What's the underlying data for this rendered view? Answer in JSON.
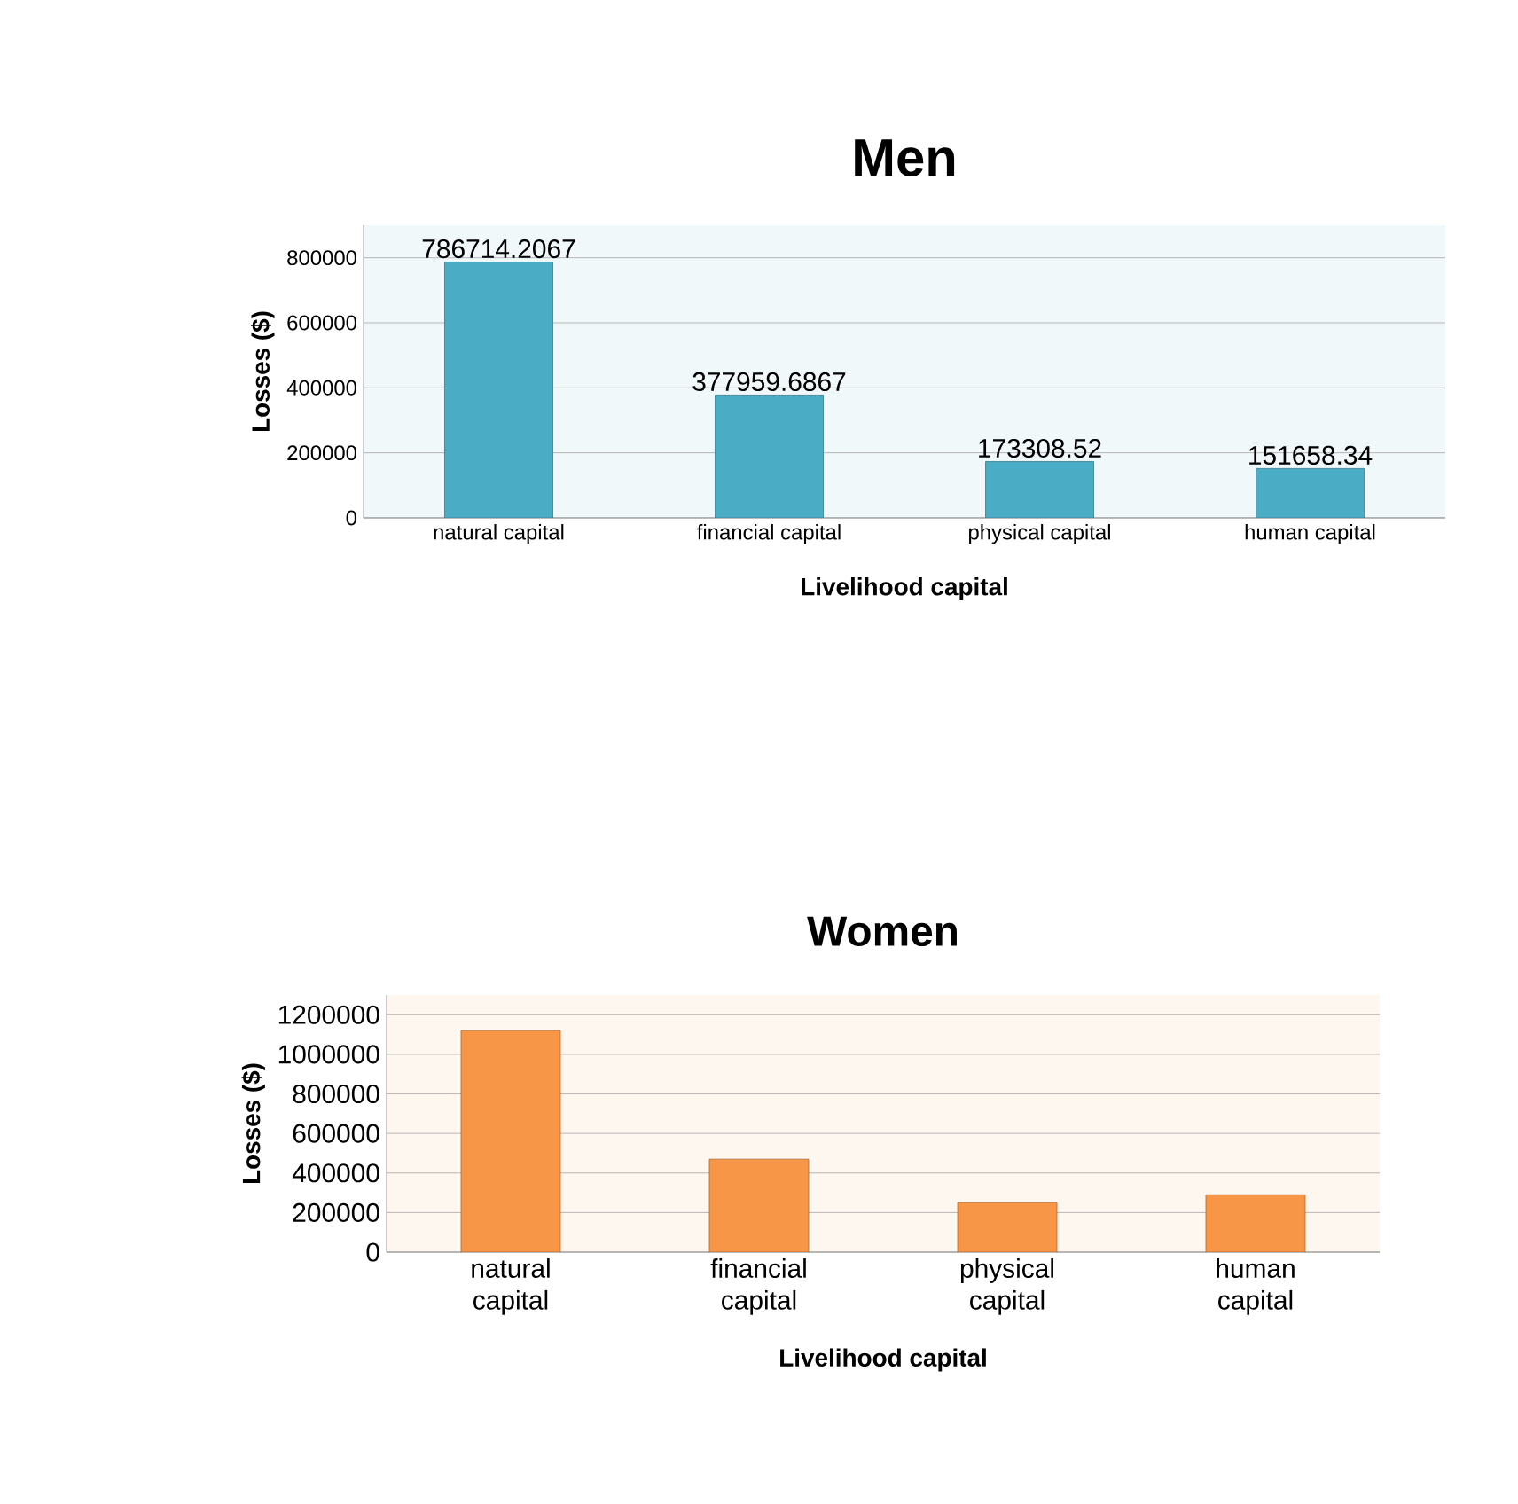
{
  "chart_data": [
    {
      "type": "bar",
      "title": "Men",
      "xlabel": "Livelihood capital",
      "ylabel": "Losses ($)",
      "categories": [
        "natural capital",
        "financial capital",
        "physical capital",
        "human capital"
      ],
      "values": [
        786714.2067,
        377959.6867,
        173308.52,
        151658.34
      ],
      "color": "#4bacc6",
      "ylim": [
        0,
        900000
      ],
      "yticks": [
        0,
        200000,
        400000,
        600000,
        800000
      ],
      "grid": "y",
      "data_labels": true
    },
    {
      "type": "bar",
      "title": "Women",
      "xlabel": "Livelihood capital",
      "ylabel": "Losses ($)",
      "categories": [
        "natural capital",
        "financial capital",
        "physical capital",
        "human capital"
      ],
      "values": [
        1120000,
        470000,
        250000,
        290000
      ],
      "color": "#f79646",
      "ylim": [
        0,
        1300000
      ],
      "yticks": [
        0,
        200000,
        400000,
        600000,
        800000,
        1000000,
        1200000
      ],
      "grid": "y"
    }
  ]
}
